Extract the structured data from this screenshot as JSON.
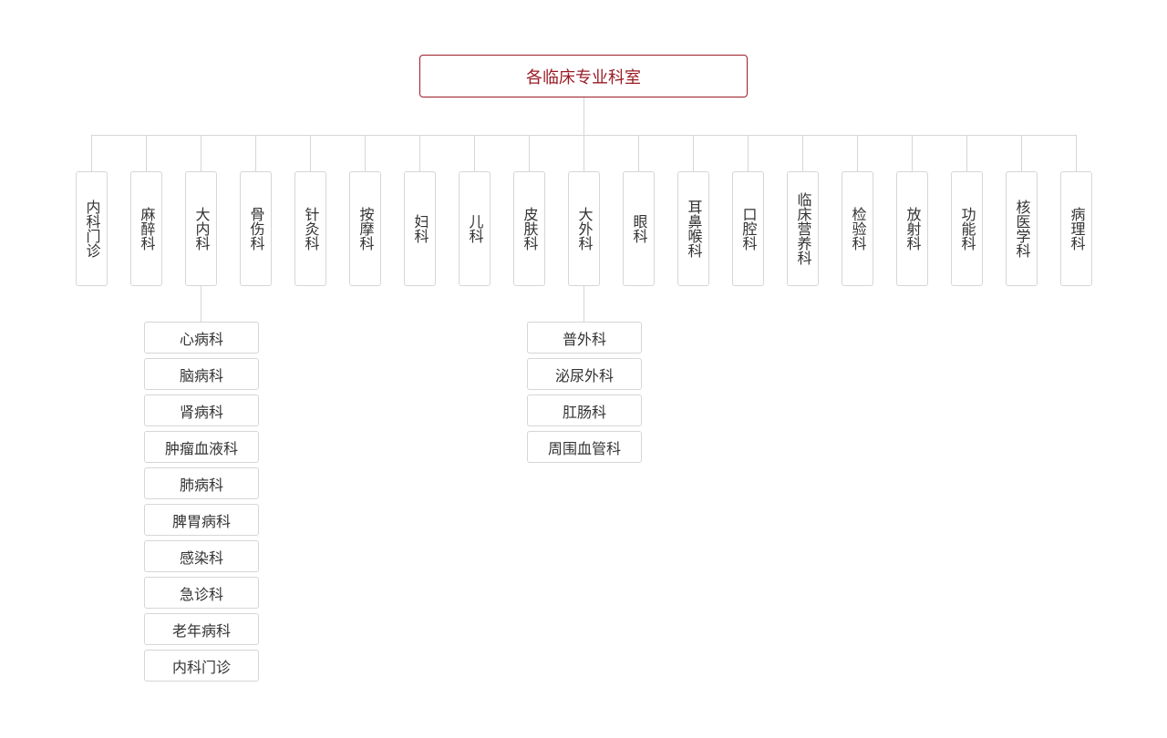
{
  "colors": {
    "root": "#9b1c26",
    "line": "#d6d6d6",
    "text": "#333333"
  },
  "root": {
    "label": "各临床专业科室"
  },
  "departments": [
    {
      "label": "内科门诊"
    },
    {
      "label": "麻醉科"
    },
    {
      "label": "大内科",
      "children": [
        "心病科",
        "脑病科",
        "肾病科",
        "肿瘤血液科",
        "肺病科",
        "脾胃病科",
        "感染科",
        "急诊科",
        "老年病科",
        "内科门诊"
      ]
    },
    {
      "label": "骨伤科"
    },
    {
      "label": "针灸科"
    },
    {
      "label": "按摩科"
    },
    {
      "label": "妇科"
    },
    {
      "label": "儿科"
    },
    {
      "label": "皮肤科"
    },
    {
      "label": "大外科",
      "children": [
        "普外科",
        "泌尿外科",
        "肛肠科",
        "周围血管科"
      ]
    },
    {
      "label": "眼科"
    },
    {
      "label": "耳鼻喉科"
    },
    {
      "label": "口腔科"
    },
    {
      "label": "临床营养科"
    },
    {
      "label": "检验科"
    },
    {
      "label": "放射科"
    },
    {
      "label": "功能科"
    },
    {
      "label": "核医学科"
    },
    {
      "label": "病理科"
    }
  ]
}
